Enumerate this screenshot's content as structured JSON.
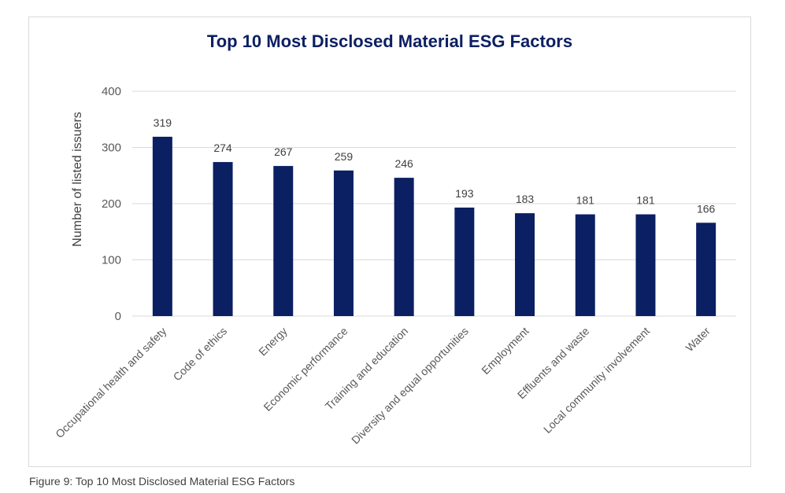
{
  "caption": "Figure 9: Top 10 Most Disclosed Material ESG Factors",
  "colors": {
    "bar": "#0b1f63",
    "title": "#0b1f63",
    "gridline": "#d9d9d9",
    "axis_text": "#595959",
    "label_text": "#404040"
  },
  "chart_data": {
    "type": "bar",
    "title": "Top 10 Most Disclosed Material ESG Factors",
    "xlabel": "",
    "ylabel": "Number of listed issuers",
    "ylim": [
      0,
      400
    ],
    "yticks": [
      0,
      100,
      200,
      300,
      400
    ],
    "grid": true,
    "categories": [
      "Occupational health and safety",
      "Code of ethics",
      "Energy",
      "Economic performance",
      "Training and education",
      "Diversity and equal opportunities",
      "Employment",
      "Effluents and waste",
      "Local community involvement",
      "Water"
    ],
    "values": [
      319,
      274,
      267,
      259,
      246,
      193,
      183,
      181,
      181,
      166
    ],
    "data_labels": true
  }
}
